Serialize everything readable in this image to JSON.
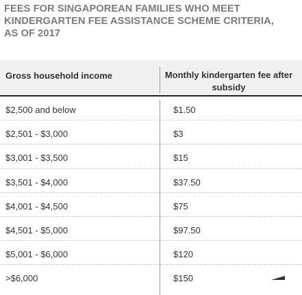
{
  "title": "FEES FOR SINGAPOREAN FAMILIES WHO MEET KINDERGARTEN FEE ASSISTANCE SCHEME CRITERIA, AS OF 2017",
  "table": {
    "headers": {
      "income": "Gross household income",
      "fee": "Monthly kindergarten fee after subsidy"
    },
    "rows": [
      {
        "income": "$2,500 and below",
        "fee": "$1.50"
      },
      {
        "income": "$2,501 - $3,000",
        "fee": "$3"
      },
      {
        "income": "$3,001 - $3,500",
        "fee": "$15"
      },
      {
        "income": "$3,501 - $4,000",
        "fee": "$37.50"
      },
      {
        "income": "$4,001 - $4,500",
        "fee": "$75"
      },
      {
        "income": "$4,501 - $5,000",
        "fee": "$97.50"
      },
      {
        "income": "$5,001 - $6,000",
        "fee": "$120"
      },
      {
        "income": ">$6,000",
        "fee": "$150"
      }
    ]
  },
  "colors": {
    "title": "#7a7a7a",
    "header_bg": "#f0f0f0",
    "rule": "#222222",
    "divider": "#999999"
  },
  "logo": {
    "icon": "wedge-logo-icon"
  }
}
